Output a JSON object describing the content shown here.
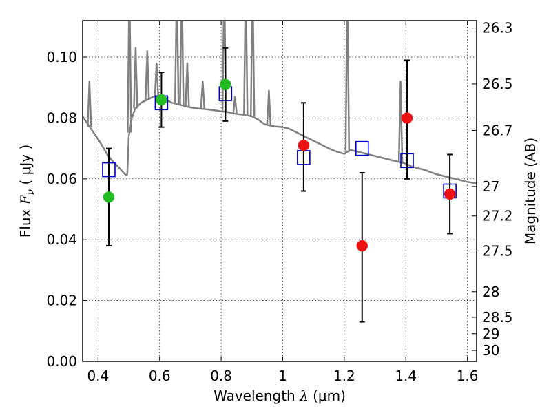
{
  "chart_data": {
    "type": "scatter",
    "xlabel": {
      "prefix": "Wavelength  ",
      "symbol": "λ",
      "suffix": " (μm)"
    },
    "ylabel": {
      "prefix": "Flux  ",
      "symbol": "F",
      "sub": "ν",
      "suffix": "  ( μJy )"
    },
    "y2label": "Magnitude (AB)",
    "xlim": [
      0.35,
      1.63
    ],
    "ylim": [
      0.0,
      0.112
    ],
    "grid": true,
    "x_ticks": [
      {
        "value": 0.4,
        "label": "0.4"
      },
      {
        "value": 0.6,
        "label": "0.6"
      },
      {
        "value": 0.8,
        "label": "0.8"
      },
      {
        "value": 1.0,
        "label": "1"
      },
      {
        "value": 1.2,
        "label": "1.2"
      },
      {
        "value": 1.4,
        "label": "1.4"
      },
      {
        "value": 1.6,
        "label": "1.6"
      }
    ],
    "y_ticks": [
      {
        "value": 0.0,
        "label": "0.00"
      },
      {
        "value": 0.02,
        "label": "0.02"
      },
      {
        "value": 0.04,
        "label": "0.04"
      },
      {
        "value": 0.06,
        "label": "0.06"
      },
      {
        "value": 0.08,
        "label": "0.08"
      },
      {
        "value": 0.1,
        "label": "0.10"
      }
    ],
    "y2_ticks": [
      {
        "flux": 0.1096,
        "label": "26.3"
      },
      {
        "flux": 0.0912,
        "label": "26.5"
      },
      {
        "flux": 0.0759,
        "label": "26.7"
      },
      {
        "flux": 0.0575,
        "label": "27"
      },
      {
        "flux": 0.0478,
        "label": "27.2"
      },
      {
        "flux": 0.0363,
        "label": "27.5"
      },
      {
        "flux": 0.0229,
        "label": "28"
      },
      {
        "flux": 0.0145,
        "label": "28.5"
      },
      {
        "flux": 0.0091,
        "label": "29"
      },
      {
        "flux": 0.0036,
        "label": "30"
      }
    ],
    "series": [
      {
        "marker": "square",
        "color": "#0000cc",
        "points": [
          {
            "x": 0.435,
            "y": 0.063
          },
          {
            "x": 0.606,
            "y": 0.085
          },
          {
            "x": 0.814,
            "y": 0.088
          },
          {
            "x": 1.068,
            "y": 0.067
          },
          {
            "x": 1.258,
            "y": 0.07
          },
          {
            "x": 1.404,
            "y": 0.066
          },
          {
            "x": 1.543,
            "y": 0.056
          }
        ]
      },
      {
        "marker": "circle",
        "color": "#22bb22",
        "points": [
          {
            "x": 0.435,
            "y": 0.054,
            "yerr_low": 0.038,
            "yerr_high": 0.07
          },
          {
            "x": 0.606,
            "y": 0.086,
            "yerr_low": 0.077,
            "yerr_high": 0.095
          },
          {
            "x": 0.814,
            "y": 0.091,
            "yerr_low": 0.079,
            "yerr_high": 0.103
          }
        ]
      },
      {
        "marker": "circle",
        "color": "#ee1111",
        "points": [
          {
            "x": 1.068,
            "y": 0.071,
            "yerr_low": 0.056,
            "yerr_high": 0.085
          },
          {
            "x": 1.258,
            "y": 0.038,
            "yerr_low": 0.013,
            "yerr_high": 0.062
          },
          {
            "x": 1.404,
            "y": 0.08,
            "yerr_low": 0.06,
            "yerr_high": 0.099
          },
          {
            "x": 1.543,
            "y": 0.055,
            "yerr_low": 0.042,
            "yerr_high": 0.068
          }
        ]
      }
    ],
    "sed_model": {
      "color": "#808080",
      "x": [
        0.35,
        0.37,
        0.39,
        0.41,
        0.43,
        0.45,
        0.47,
        0.49,
        0.495,
        0.5,
        0.51,
        0.52,
        0.54,
        0.56,
        0.58,
        0.6,
        0.62,
        0.64,
        0.66,
        0.68,
        0.7,
        0.72,
        0.74,
        0.76,
        0.78,
        0.8,
        0.82,
        0.84,
        0.86,
        0.88,
        0.9,
        0.92,
        0.94,
        0.96,
        0.98,
        1.0,
        1.02,
        1.04,
        1.06,
        1.08,
        1.1,
        1.12,
        1.14,
        1.16,
        1.18,
        1.2,
        1.22,
        1.24,
        1.26,
        1.28,
        1.3,
        1.32,
        1.34,
        1.36,
        1.38,
        1.4,
        1.42,
        1.44,
        1.46,
        1.48,
        1.5,
        1.52,
        1.54,
        1.56,
        1.58,
        1.6,
        1.63
      ],
      "y": [
        0.0805,
        0.0775,
        0.0745,
        0.0715,
        0.068,
        0.0655,
        0.0635,
        0.0612,
        0.0615,
        0.074,
        0.08,
        0.083,
        0.085,
        0.086,
        0.087,
        0.087,
        0.086,
        0.085,
        0.0845,
        0.084,
        0.0835,
        0.0832,
        0.083,
        0.0828,
        0.0825,
        0.0822,
        0.082,
        0.0815,
        0.0812,
        0.081,
        0.0805,
        0.0795,
        0.078,
        0.0775,
        0.0772,
        0.077,
        0.0765,
        0.0755,
        0.0745,
        0.0735,
        0.0725,
        0.0715,
        0.0705,
        0.0695,
        0.0688,
        0.0682,
        0.0695,
        0.069,
        0.0685,
        0.068,
        0.0675,
        0.067,
        0.0665,
        0.066,
        0.0655,
        0.065,
        0.064,
        0.0635,
        0.063,
        0.0622,
        0.0615,
        0.061,
        0.0605,
        0.06,
        0.0595,
        0.059,
        0.0585
      ],
      "emission_lines": [
        {
          "x": 0.372,
          "peak": 0.092
        },
        {
          "x": 0.502,
          "peak": 0.125
        },
        {
          "x": 0.522,
          "peak": 0.103
        },
        {
          "x": 0.56,
          "peak": 0.102
        },
        {
          "x": 0.59,
          "peak": 0.098
        },
        {
          "x": 0.656,
          "peak": 0.125
        },
        {
          "x": 0.672,
          "peak": 0.125
        },
        {
          "x": 0.69,
          "peak": 0.098
        },
        {
          "x": 0.74,
          "peak": 0.092
        },
        {
          "x": 0.81,
          "peak": 0.125
        },
        {
          "x": 0.845,
          "peak": 0.087
        },
        {
          "x": 0.88,
          "peak": 0.125
        },
        {
          "x": 0.902,
          "peak": 0.125
        },
        {
          "x": 0.955,
          "peak": 0.089
        },
        {
          "x": 1.21,
          "peak": 0.125
        },
        {
          "x": 1.383,
          "peak": 0.092
        }
      ]
    }
  }
}
